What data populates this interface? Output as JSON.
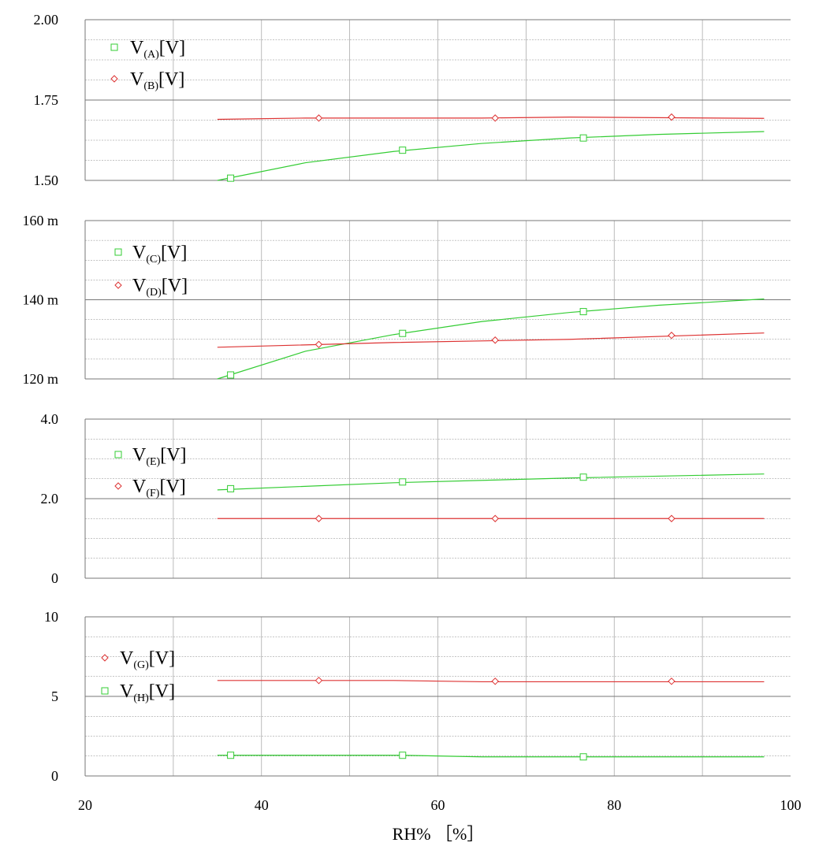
{
  "chart_data": [
    {
      "type": "line",
      "ylim": [
        1.5,
        2.0
      ],
      "yticks": [
        {
          "value": 1.5,
          "label": "1.50"
        },
        {
          "value": 1.75,
          "label": "1.75"
        },
        {
          "value": 2.0,
          "label": "2.00"
        }
      ],
      "series": [
        {
          "name": "V(A)[V]",
          "sub": "(A)",
          "color": "#33cc33",
          "marker": "square",
          "x": [
            35,
            45,
            55,
            65,
            75,
            85,
            97
          ],
          "y": [
            1.5,
            1.555,
            1.59,
            1.615,
            1.632,
            1.643,
            1.652
          ],
          "mx": [
            36.5,
            56,
            76.5
          ],
          "my": [
            1.507,
            1.594,
            1.632
          ]
        },
        {
          "name": "V(B)[V]",
          "sub": "(B)",
          "color": "#dd3333",
          "marker": "diamond",
          "x": [
            35,
            45,
            65,
            75,
            97
          ],
          "y": [
            1.69,
            1.694,
            1.694,
            1.697,
            1.693
          ],
          "mx": [
            46.5,
            66.5,
            86.5
          ],
          "my": [
            1.694,
            1.694,
            1.697
          ]
        }
      ]
    },
    {
      "type": "line",
      "ylim": [
        120,
        160
      ],
      "yticks": [
        {
          "value": 120,
          "label": "120 m"
        },
        {
          "value": 140,
          "label": "140 m"
        },
        {
          "value": 160,
          "label": "160 m"
        }
      ],
      "series": [
        {
          "name": "V(C)[V]",
          "sub": "(C)",
          "color": "#33cc33",
          "marker": "square",
          "x": [
            35,
            45,
            55,
            65,
            75,
            85,
            97
          ],
          "y": [
            120,
            127,
            131.2,
            134.5,
            136.8,
            138.6,
            140.2
          ],
          "mx": [
            36.5,
            56,
            76.5
          ],
          "my": [
            121,
            131.5,
            137
          ]
        },
        {
          "name": "V(D)[V]",
          "sub": "(D)",
          "color": "#dd3333",
          "marker": "diamond",
          "x": [
            35,
            55,
            75,
            97
          ],
          "y": [
            128,
            129.2,
            130,
            131.6
          ],
          "mx": [
            46.5,
            66.5,
            86.5
          ],
          "my": [
            128.7,
            129.8,
            131
          ]
        }
      ]
    },
    {
      "type": "line",
      "ylim": [
        0,
        4.0
      ],
      "yticks": [
        {
          "value": 0,
          "label": "0"
        },
        {
          "value": 2.0,
          "label": "2.0"
        },
        {
          "value": 4.0,
          "label": "4.0"
        }
      ],
      "series": [
        {
          "name": "V(E)[V]",
          "sub": "(E)",
          "color": "#33cc33",
          "marker": "square",
          "x": [
            35,
            55,
            75,
            97
          ],
          "y": [
            2.22,
            2.4,
            2.52,
            2.62
          ],
          "mx": [
            36.5,
            56,
            76.5
          ],
          "my": [
            2.25,
            2.42,
            2.54
          ]
        },
        {
          "name": "V(F)[V]",
          "sub": "(F)",
          "color": "#dd3333",
          "marker": "diamond",
          "x": [
            35,
            97
          ],
          "y": [
            1.5,
            1.5
          ],
          "mx": [
            46.5,
            66.5,
            86.5
          ],
          "my": [
            1.5,
            1.5,
            1.5
          ]
        }
      ]
    },
    {
      "type": "line",
      "ylim": [
        0,
        10
      ],
      "yticks": [
        {
          "value": 0,
          "label": "0"
        },
        {
          "value": 5,
          "label": "5"
        },
        {
          "value": 10,
          "label": "10"
        }
      ],
      "series": [
        {
          "name": "V(G)[V]",
          "sub": "(G)",
          "color": "#dd3333",
          "marker": "diamond",
          "x": [
            35,
            55,
            65,
            97
          ],
          "y": [
            6.0,
            6.0,
            5.92,
            5.92
          ],
          "mx": [
            46.5,
            66.5,
            86.5
          ],
          "my": [
            6.0,
            5.95,
            5.95
          ]
        },
        {
          "name": "V(H)[V]",
          "sub": "(H)",
          "color": "#33cc33",
          "marker": "square",
          "x": [
            35,
            56,
            65,
            97
          ],
          "y": [
            1.3,
            1.3,
            1.2,
            1.2
          ],
          "mx": [
            36.5,
            56,
            76.5
          ],
          "my": [
            1.3,
            1.3,
            1.2
          ]
        }
      ]
    }
  ],
  "x_axis": {
    "xlim": [
      20,
      100
    ],
    "ticks": [
      20,
      40,
      60,
      80,
      100
    ],
    "label": "RH% ［%］"
  },
  "grid": true,
  "legend_placement": "top-left"
}
